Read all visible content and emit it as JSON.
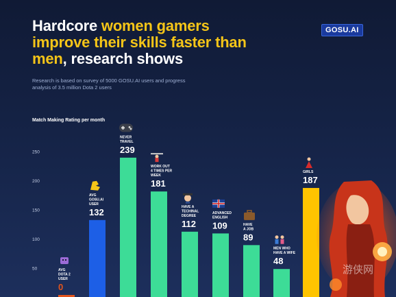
{
  "headline": {
    "part1": "Hardcore ",
    "highlight1": "women gamers improve their skills faster than men",
    "part2": ", research shows"
  },
  "brand": "GOSU.AI",
  "subtitle": "Research is based on survey of 5000 GOSU.AI users and progress analysis of 3.5 million Dota 2 users",
  "watermark": "游侠网",
  "colors": {
    "teal": "#3ddc97",
    "blue": "#1d5fe6",
    "gold": "#ffc400",
    "orange": "#e2541c",
    "highlight": "#f5c518"
  },
  "chart_data": {
    "type": "bar",
    "ylabel": "Match  Making Rating per month",
    "ylim": [
      0,
      260
    ],
    "yticks": [
      50,
      100,
      150,
      200,
      250
    ],
    "categories": [
      [
        "AVG",
        "DOTA 2",
        "USER"
      ],
      [
        "AVG",
        "GOSU.AI",
        "USER"
      ],
      [
        "NEVER",
        "TRAVEL"
      ],
      [
        "WORK OUT",
        "4 TIMES PER",
        "WEEK"
      ],
      [
        "HAVE A",
        "TECHINAL",
        "DEGREE"
      ],
      [
        "ADVANCED",
        "ENGLISH"
      ],
      [
        "HAVE",
        "A JOB"
      ],
      [
        "MEN WHO",
        "HAVE A WIFE"
      ],
      [
        "GIRLS"
      ]
    ],
    "values": [
      0,
      132,
      239,
      181,
      112,
      109,
      89,
      48,
      187
    ],
    "bar_colors": [
      "orange",
      "blue",
      "teal",
      "teal",
      "teal",
      "teal",
      "teal",
      "teal",
      "gold"
    ],
    "label_colors": [
      "orange",
      "white",
      "white",
      "white",
      "white",
      "white",
      "white",
      "white",
      "white"
    ],
    "icons": [
      "bug-icon",
      "flexed-biceps-icon",
      "gamepad-icon",
      "weightlifter-icon",
      "student-icon",
      "uk-flag-icon",
      "briefcase-icon",
      "couple-icon",
      "dancer-icon"
    ]
  }
}
